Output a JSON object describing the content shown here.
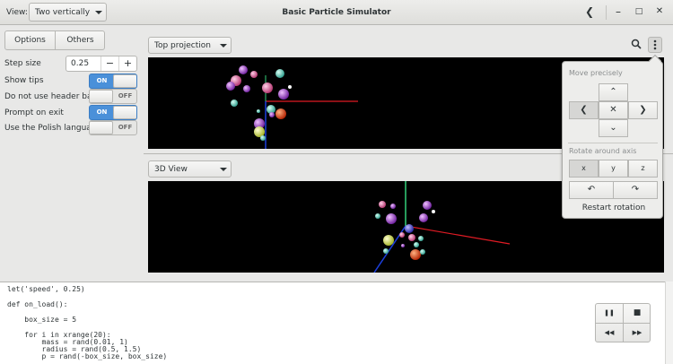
{
  "header": {
    "view_label": "View:",
    "view_value": "Two vertically",
    "title": "Basic Particle Simulator",
    "back_glyph": "❮",
    "min_glyph": "–",
    "max_glyph": "□",
    "close_glyph": "✕"
  },
  "sidebar": {
    "tabs": [
      "Options",
      "Others"
    ],
    "step_size": {
      "label": "Step size",
      "value": "0.25",
      "minus": "−",
      "plus": "+"
    },
    "switches": [
      {
        "label": "Show tips",
        "state": "ON",
        "on": true
      },
      {
        "label": "Do not use header bar",
        "state": "OFF",
        "on": false
      },
      {
        "label": "Prompt on exit",
        "state": "ON",
        "on": true
      },
      {
        "label": "Use the Polish language",
        "state": "OFF",
        "on": false
      }
    ]
  },
  "top_view": {
    "projection": "Top projection",
    "search_icon": "search-icon",
    "menu_icon": "menu-icon"
  },
  "bottom_view": {
    "projection": "3D View"
  },
  "popover": {
    "move_heading": "Move precisely",
    "move_buttons": {
      "up": "⌃",
      "left": "❮",
      "center": "✕",
      "right": "❯",
      "down": "⌄"
    },
    "rotate_heading": "Rotate around axis",
    "axes": [
      "x",
      "y",
      "z"
    ],
    "rotate_ccw": "↶",
    "rotate_cw": "↷",
    "restart": "Restart rotation"
  },
  "editor": {
    "lines": [
      "let('speed', 0.25)",
      "def on_load():",
      "    box_size = 5",
      "    for i in xrange(20):",
      "        mass = rand(0.01, 1)",
      "        radius = rand(0.5, 1.5)",
      "        p = rand(-box_size, box_size)"
    ]
  },
  "player": {
    "pause": "❚❚",
    "stop": "■",
    "rewind": "◀◀",
    "forward": "▶▶",
    "snapshot": "◙"
  },
  "colors": {
    "accent": "#4a90d9",
    "axis_x": "#e01b24",
    "axis_y": "#33d17a",
    "axis_z": "#1c3fdc"
  }
}
